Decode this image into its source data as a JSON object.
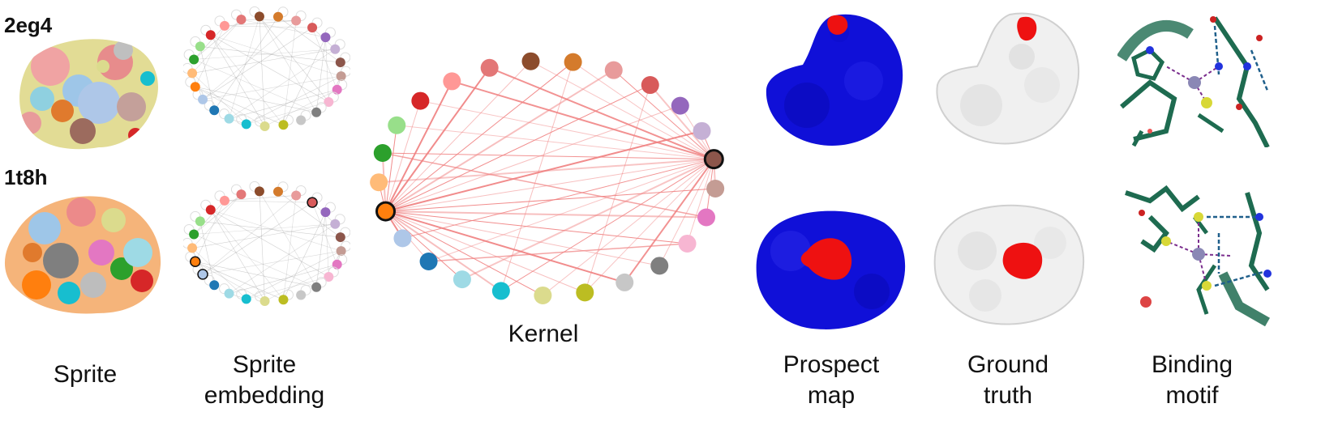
{
  "proteins": [
    {
      "id": "2eg4"
    },
    {
      "id": "1t8h"
    }
  ],
  "captions": {
    "sprite": "Sprite",
    "embedding_line1": "Sprite",
    "embedding_line2": "embedding",
    "kernel": "Kernel",
    "prospect_line1": "Prospect",
    "prospect_line2": "map",
    "truth_line1": "Ground",
    "truth_line2": "truth",
    "motif_line1": "Binding",
    "motif_line2": "motif"
  },
  "node_palette": [
    "#e37777",
    "#8c4c2c",
    "#d47b2c",
    "#e89b9b",
    "#d85a5a",
    "#9467bd",
    "#c5b0d5",
    "#8c564b",
    "#c49c94",
    "#e377c2",
    "#f7b6d2",
    "#7f7f7f",
    "#c7c7c7",
    "#bcbd22",
    "#dbdb8d",
    "#17becf",
    "#9edae5",
    "#1f77b4",
    "#aec7e8",
    "#ff7f0e",
    "#ffbb78",
    "#2ca02c",
    "#98df8a",
    "#d62728",
    "#ff9896"
  ],
  "colors": {
    "protein_blue": "#1010d8",
    "binding_red": "#ee1111",
    "surface_white": "#f0f0f0",
    "kernel_edge": "#f08080",
    "motif_green": "#1e6b50"
  }
}
